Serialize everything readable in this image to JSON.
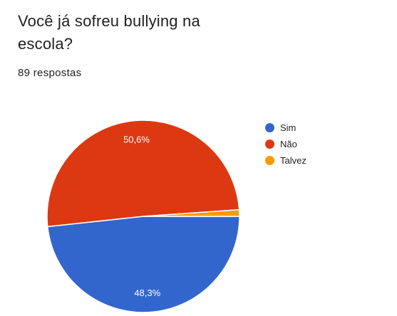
{
  "question": {
    "title": "Você já sofreu bullying na escola?",
    "responses": "89 respostas"
  },
  "chart_data": {
    "type": "pie",
    "categories": [
      "Sim",
      "Não",
      "Talvez"
    ],
    "values": [
      48.3,
      50.6,
      1.1
    ],
    "slice_labels": [
      "48,3%",
      "50,6%",
      ""
    ],
    "colors": [
      "#3366cc",
      "#dc3912",
      "#ff9900"
    ],
    "legend_position": "right"
  }
}
